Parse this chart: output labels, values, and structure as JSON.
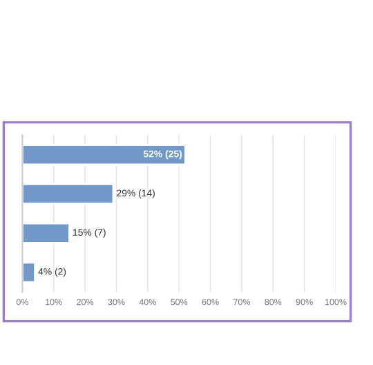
{
  "chart_data": {
    "type": "bar",
    "orientation": "horizontal",
    "categories": [
      null,
      null,
      null,
      null
    ],
    "values": [
      52,
      29,
      15,
      4
    ],
    "color": "#7099c9",
    "value_labels": [
      "52% (25)",
      "29% (14)",
      "15% (7)",
      "4% (2)"
    ],
    "xlim": [
      0,
      100
    ],
    "xticks": [
      {
        "value": 0,
        "label": "0%"
      },
      {
        "value": 10,
        "label": "10%"
      },
      {
        "value": 20,
        "label": "20%"
      },
      {
        "value": 30,
        "label": "30%"
      },
      {
        "value": 40,
        "label": "40%"
      },
      {
        "value": 50,
        "label": "50%"
      },
      {
        "value": 60,
        "label": "60%"
      },
      {
        "value": 70,
        "label": "70%"
      },
      {
        "value": 80,
        "label": "80%"
      },
      {
        "value": 90,
        "label": "90%"
      },
      {
        "value": 100,
        "label": "100%"
      }
    ],
    "grid": "x",
    "tick_labels": "x"
  }
}
